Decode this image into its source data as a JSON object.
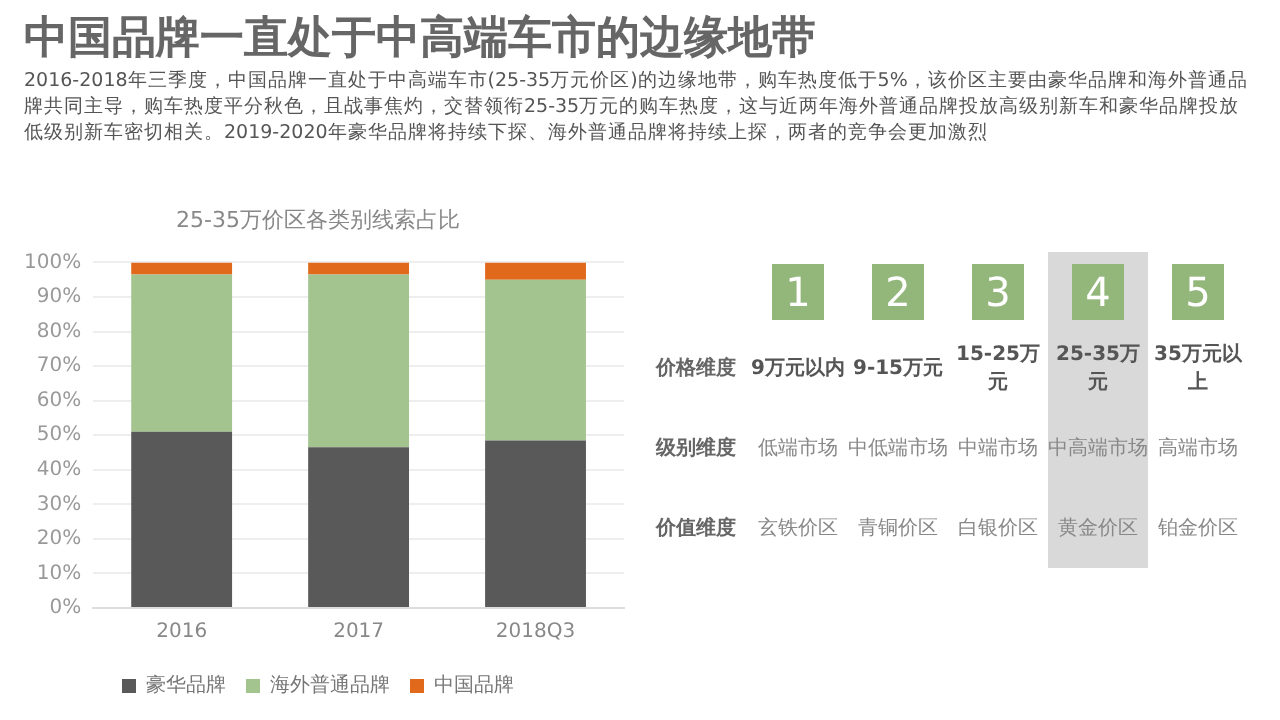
{
  "chart_data": {
    "type": "bar",
    "title": "中国品牌一直处于中高端车市的边缘地带",
    "subtitle": "2016-2018年三季度，中国品牌一直处于中高端车市(25-35万元价区)的边缘地带，购车热度低于5%，该价区主要由豪华品牌和海外普通品牌共同主导，购车热度平分秋色，且战事焦灼，交替领衔25-35万元的购车热度，这与近两年海外普通品牌投放高级别新车和豪华品牌投放低级别新车密切相关。2019-2020年豪华品牌将持续下探、海外普通品牌将持续上探，两者的竞争会更加激烈",
    "categories": [
      "2016",
      "2017",
      "2018Q3"
    ],
    "series": [
      {
        "name": "豪华品牌",
        "color": "#595959",
        "values": [
          51,
          46.5,
          48.5
        ]
      },
      {
        "name": "海外普通品牌",
        "color": "#a3c48f",
        "values": [
          45.5,
          50,
          46.5
        ]
      },
      {
        "name": "中国品牌",
        "color": "#e0691c",
        "values": [
          3.5,
          3.5,
          5
        ]
      }
    ],
    "stacked": true,
    "ylim": [
      0,
      100
    ],
    "yticks": [
      {
        "value": 0,
        "label": "0%"
      },
      {
        "value": 10,
        "label": "10%"
      },
      {
        "value": 20,
        "label": "20%"
      },
      {
        "value": 30,
        "label": "30%"
      },
      {
        "value": 40,
        "label": "40%"
      },
      {
        "value": 50,
        "label": "50%"
      },
      {
        "value": 60,
        "label": "60%"
      },
      {
        "value": 70,
        "label": "70%"
      },
      {
        "value": 80,
        "label": "80%"
      },
      {
        "value": 90,
        "label": "90%"
      },
      {
        "value": 100,
        "label": "100%"
      }
    ],
    "grid": "y",
    "legend": "bottom",
    "annotations": [
      "25-35万价区各类别线索占比",
      "价格维度",
      "级别维度",
      "价值维度",
      "1",
      "9万元以内",
      "低端市场",
      "玄铁价区",
      "2",
      "9-15万元",
      "中低端市场",
      "青铜价区",
      "3",
      "15-25万元",
      "中端市场",
      "白银价区",
      "4",
      "25-35万元",
      "中高端市场",
      "黄金价区",
      "5",
      "35万元以上",
      "高端市场",
      "铂金价区"
    ]
  }
}
